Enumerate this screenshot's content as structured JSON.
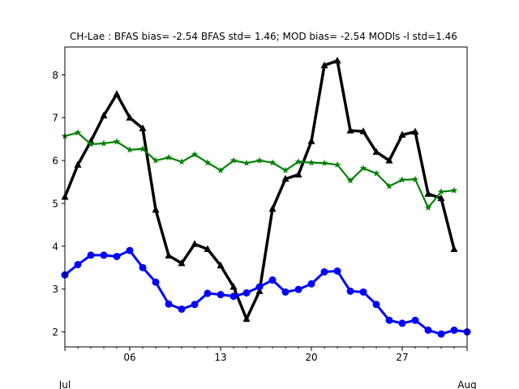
{
  "chart_data": {
    "type": "line",
    "title": "CH-Lae   : BFAS bias= -2.54 BFAS std= 1.46; MOD bias= -2.54 MODls -l std=1.46",
    "xlabel": "",
    "ylabel": "",
    "xlim": [
      1,
      32
    ],
    "ylim": [
      1.65,
      8.65
    ],
    "grid": false,
    "x_major_ticks": [
      {
        "x": 1,
        "label": ""
      },
      {
        "x": 6,
        "label": "06"
      },
      {
        "x": 13,
        "label": "13"
      },
      {
        "x": 20,
        "label": "20"
      },
      {
        "x": 27,
        "label": "27"
      },
      {
        "x": 32,
        "label": ""
      }
    ],
    "x_month_labels": [
      {
        "x": 1,
        "label": "Jul"
      },
      {
        "x": 32,
        "label": "Aug"
      }
    ],
    "y_ticks": [
      2,
      3,
      4,
      5,
      6,
      7,
      8
    ],
    "x": [
      1,
      2,
      3,
      4,
      5,
      6,
      7,
      8,
      9,
      10,
      11,
      12,
      13,
      14,
      15,
      16,
      17,
      18,
      19,
      20,
      21,
      22,
      23,
      24,
      25,
      26,
      27,
      28,
      29,
      30,
      31,
      32
    ],
    "series": [
      {
        "color": "#000000",
        "marker": "triangle",
        "line_width": 3.5,
        "values": [
          5.15,
          5.9,
          6.45,
          7.05,
          7.55,
          7.0,
          6.75,
          4.85,
          3.78,
          3.6,
          4.05,
          3.93,
          3.55,
          3.05,
          2.3,
          2.95,
          4.87,
          5.57,
          5.67,
          6.45,
          8.22,
          8.33,
          6.7,
          6.68,
          6.2,
          6.0,
          6.6,
          6.67,
          5.22,
          5.12,
          3.93,
          null
        ]
      },
      {
        "color": "#008000",
        "marker": "star",
        "line_width": 2.2,
        "values": [
          6.57,
          6.65,
          6.38,
          6.4,
          6.44,
          6.25,
          6.27,
          6.0,
          6.07,
          5.97,
          6.14,
          5.95,
          5.77,
          6.0,
          5.94,
          6.0,
          5.95,
          5.77,
          5.97,
          5.95,
          5.94,
          5.9,
          5.53,
          5.82,
          5.7,
          5.4,
          5.55,
          5.56,
          4.9,
          5.27,
          5.3,
          null
        ]
      },
      {
        "color": "#0000ff",
        "marker": "circle",
        "line_width": 3.0,
        "values": [
          3.33,
          3.57,
          3.79,
          3.79,
          3.76,
          3.9,
          3.5,
          3.16,
          2.65,
          2.53,
          2.64,
          2.9,
          2.87,
          2.83,
          2.91,
          3.05,
          3.21,
          2.93,
          2.99,
          3.12,
          3.4,
          3.42,
          2.95,
          2.93,
          2.64,
          2.27,
          2.2,
          2.27,
          2.04,
          1.95,
          2.04,
          2.0
        ]
      }
    ]
  }
}
